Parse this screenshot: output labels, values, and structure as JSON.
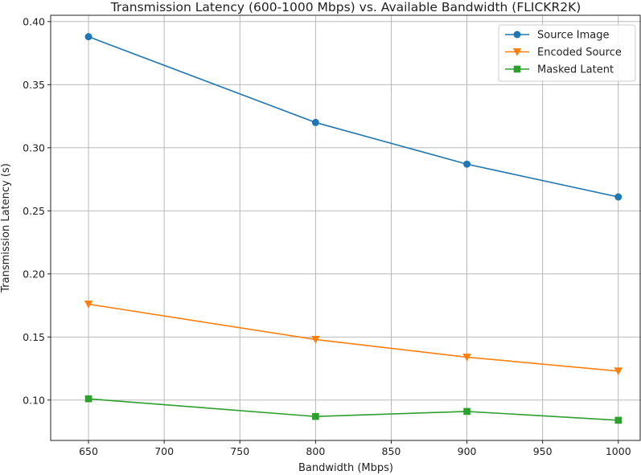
{
  "chart_data": {
    "type": "line",
    "title": "Transmission Latency (600-1000 Mbps) vs. Available Bandwidth (FLICKR2K)",
    "xlabel": "Bandwidth (Mbps)",
    "ylabel": "Transmission Latency (s)",
    "xlim": [
      625,
      1015
    ],
    "ylim": [
      0.068,
      0.405
    ],
    "xticks": [
      650,
      700,
      750,
      800,
      850,
      900,
      950,
      1000
    ],
    "yticks": [
      0.1,
      0.15,
      0.2,
      0.25,
      0.3,
      0.35,
      0.4
    ],
    "ytick_labels": [
      "0.10",
      "0.15",
      "0.20",
      "0.25",
      "0.30",
      "0.35",
      "0.40"
    ],
    "grid": true,
    "legend_position": "top-right",
    "x": [
      650,
      800,
      900,
      1000
    ],
    "series": [
      {
        "name": "Source Image",
        "color": "#1f77b4",
        "marker": "circle",
        "values": [
          0.388,
          0.32,
          0.287,
          0.261
        ]
      },
      {
        "name": "Encoded Source",
        "color": "#ff7f0e",
        "marker": "triangle-down",
        "values": [
          0.176,
          0.148,
          0.134,
          0.123
        ]
      },
      {
        "name": "Masked Latent",
        "color": "#2ca02c",
        "marker": "square",
        "values": [
          0.101,
          0.087,
          0.091,
          0.084
        ]
      }
    ]
  }
}
